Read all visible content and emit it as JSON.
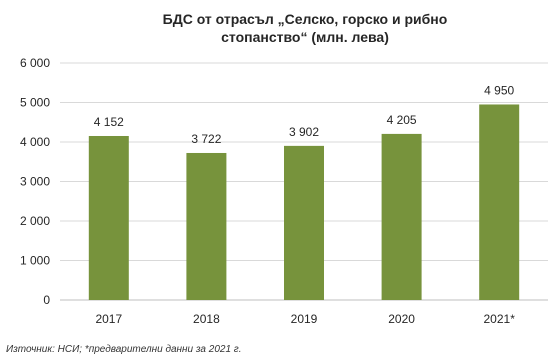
{
  "chart_data": {
    "type": "bar",
    "title_lines": [
      "БДС от отрасъл „Селско, горско и рибно",
      "стопанство“ (млн. лева)"
    ],
    "categories": [
      "2017",
      "2018",
      "2019",
      "2020",
      "2021*"
    ],
    "values": [
      4152,
      3722,
      3902,
      4205,
      4950
    ],
    "value_labels": [
      "4 152",
      "3 722",
      "3 902",
      "4 205",
      "4 950"
    ],
    "y_ticks": [
      0,
      1000,
      2000,
      3000,
      4000,
      5000,
      6000
    ],
    "y_tick_labels": [
      "0",
      "1 000",
      "2 000",
      "3 000",
      "4 000",
      "5 000",
      "6 000"
    ],
    "ylim": [
      0,
      6000
    ],
    "grid": true,
    "legend": "none",
    "bar_color": "#77933C",
    "grid_color": "#D9D9D9"
  },
  "source_note": "Източник: НСИ; *предварителни данни за 2021 г."
}
